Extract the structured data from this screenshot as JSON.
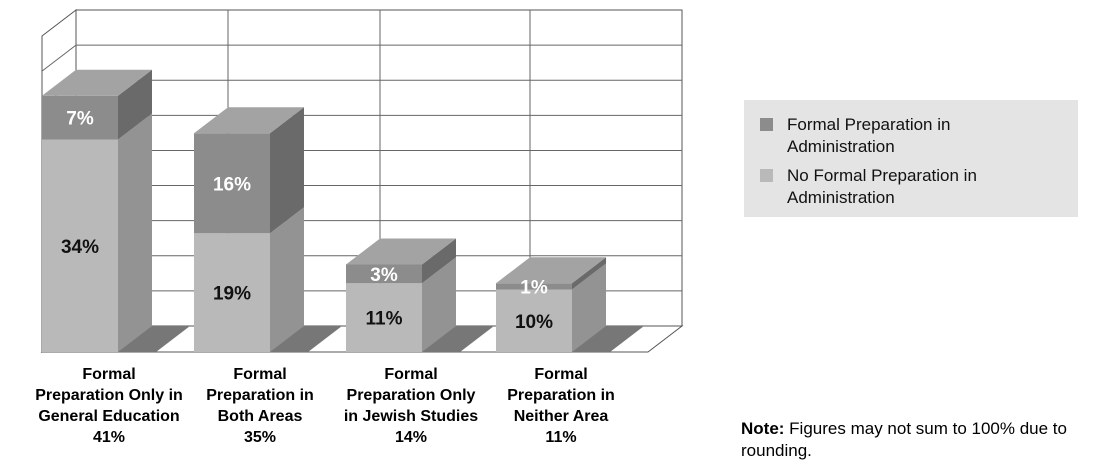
{
  "chart_data": {
    "type": "bar",
    "stacked": true,
    "style": "3d",
    "categories": [
      "Formal Preparation Only in General Education",
      "Formal Preparation in Both Areas",
      "Formal Preparation Only in Jewish Studies",
      "Formal Preparation in Neither Area"
    ],
    "category_label_lines": [
      [
        "Formal",
        "Preparation Only in",
        "General Education",
        "41%"
      ],
      [
        "Formal",
        "Preparation in",
        "Both Areas",
        "35%"
      ],
      [
        "Formal",
        "Preparation Only",
        "in Jewish Studies",
        "14%"
      ],
      [
        "Formal",
        "Preparation in",
        "Neither Area",
        "11%"
      ]
    ],
    "totals": [
      41,
      35,
      14,
      11
    ],
    "series": [
      {
        "name": "No Formal Preparation in Administration",
        "values": [
          34,
          19,
          11,
          10
        ],
        "labels": [
          "34%",
          "19%",
          "11%",
          "10%"
        ],
        "color": "#b9b9b9"
      },
      {
        "name": "Formal Preparation in Administration",
        "values": [
          7,
          16,
          3,
          1
        ],
        "labels": [
          "7%",
          "16%",
          "3%",
          "1%"
        ],
        "color": "#8c8c8c"
      }
    ],
    "ylim": [
      0,
      45
    ],
    "grid": true,
    "legend_position": "right"
  },
  "legend": {
    "items": [
      {
        "label": "Formal Preparation in Administration",
        "color": "#8c8c8c"
      },
      {
        "label": "No Formal Preparation in Administration",
        "color": "#b9b9b9"
      }
    ]
  },
  "note": {
    "bold": "Note:",
    "text": " Figures may not sum to 100% due to rounding."
  }
}
